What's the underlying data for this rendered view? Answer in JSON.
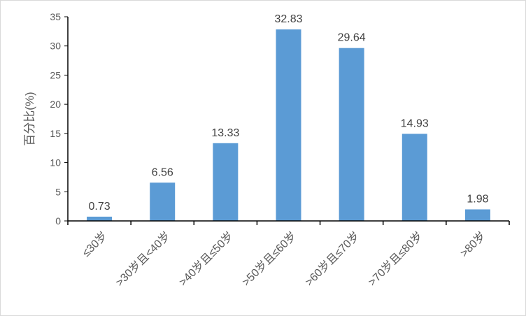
{
  "chart_data": {
    "type": "bar",
    "title": "",
    "xlabel": "",
    "ylabel": "百分比(%)",
    "ylim": [
      0,
      35
    ],
    "yticks": [
      0,
      5,
      10,
      15,
      20,
      25,
      30,
      35
    ],
    "grid": false,
    "categories": [
      "≤30岁",
      ">30岁且<40岁",
      ">40岁且≤50岁",
      ">50岁且≤60岁",
      ">60岁且≤70岁",
      ">70岁且≤80岁",
      ">80岁"
    ],
    "values": [
      0.73,
      6.56,
      13.33,
      32.83,
      29.64,
      14.93,
      1.98
    ],
    "data_labels": [
      "0.73",
      "6.56",
      "13.33",
      "32.83",
      "29.64",
      "14.93",
      "1.98"
    ],
    "bar_color": "#5b9bd5"
  }
}
